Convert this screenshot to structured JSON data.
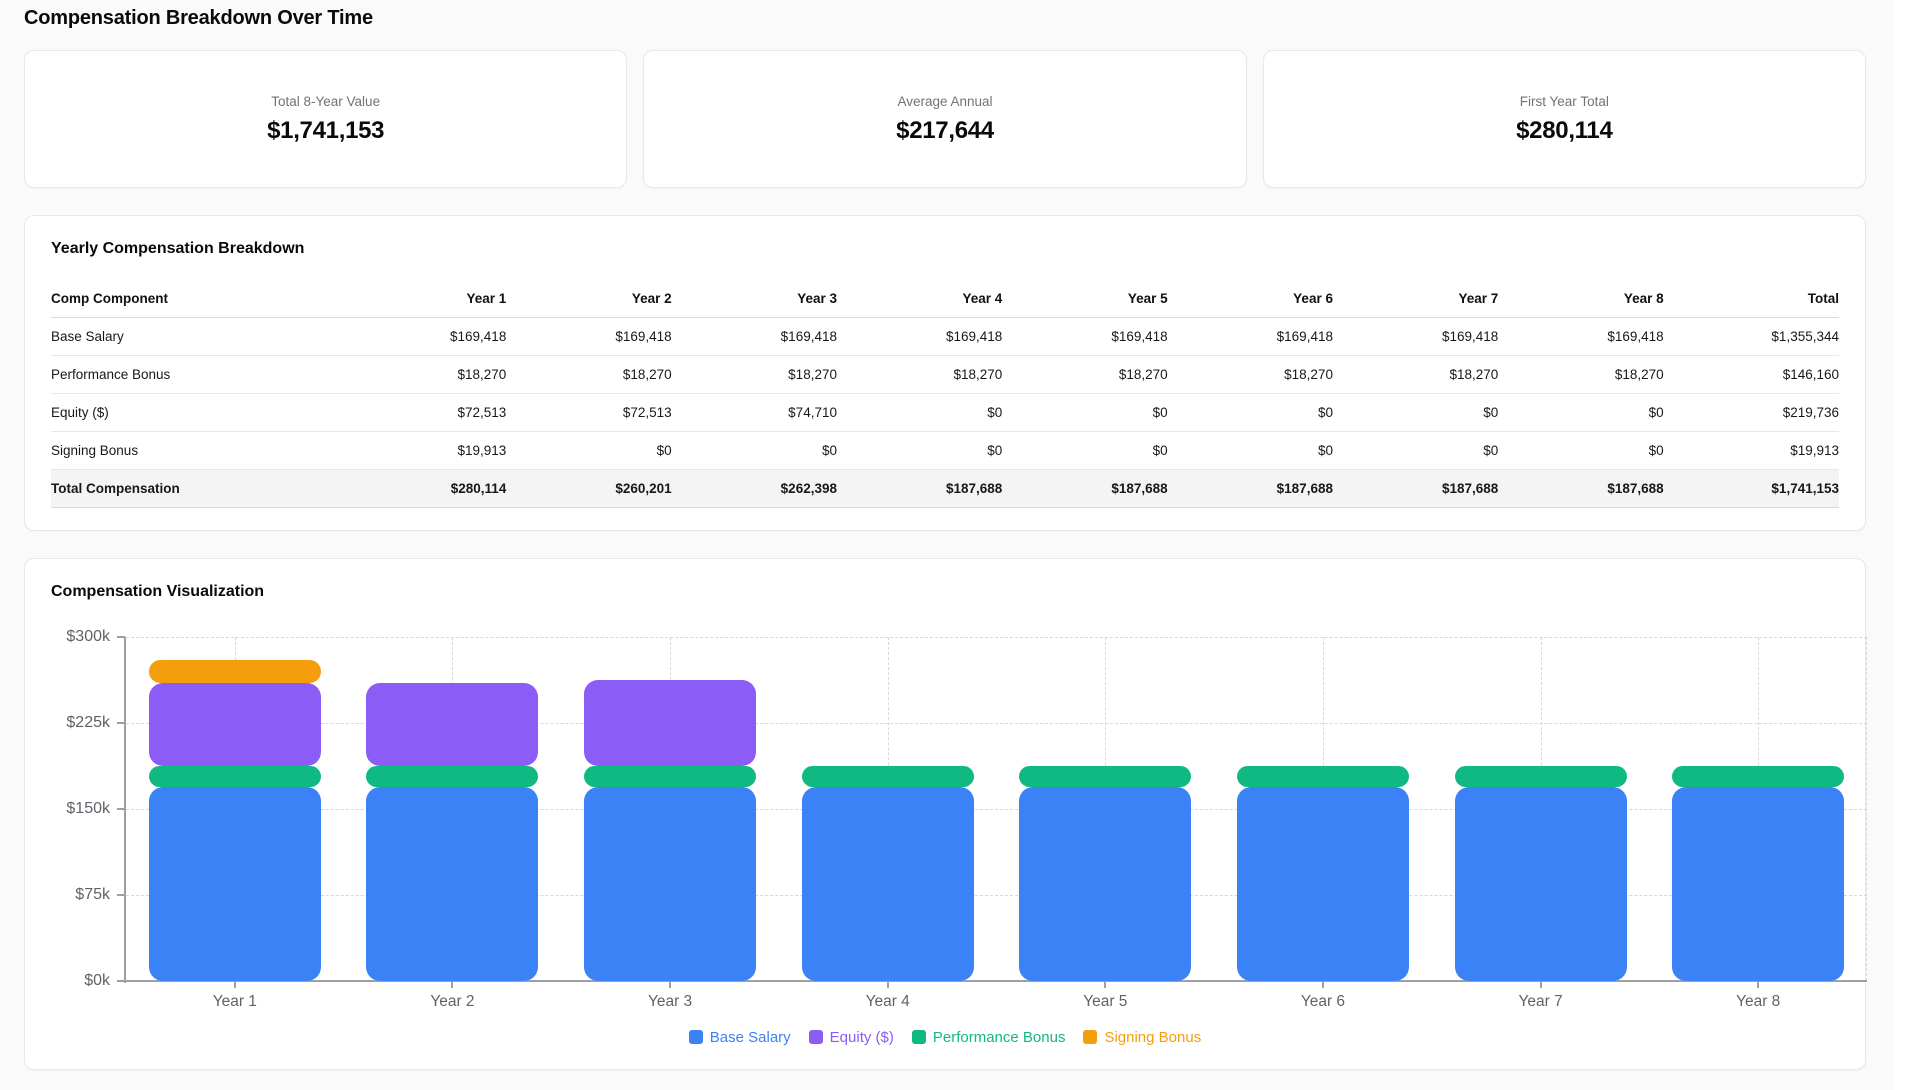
{
  "page": {
    "title": "Compensation Breakdown Over Time"
  },
  "summary_cards": [
    {
      "label": "Total 8-Year Value",
      "value": "$1,741,153"
    },
    {
      "label": "Average Annual",
      "value": "$217,644"
    },
    {
      "label": "First Year Total",
      "value": "$280,114"
    }
  ],
  "table": {
    "title": "Yearly Compensation Breakdown",
    "columns": [
      "Comp Component",
      "Year 1",
      "Year 2",
      "Year 3",
      "Year 4",
      "Year 5",
      "Year 6",
      "Year 7",
      "Year 8",
      "Total"
    ],
    "rows": [
      {
        "label": "Base Salary",
        "values": [
          "$169,418",
          "$169,418",
          "$169,418",
          "$169,418",
          "$169,418",
          "$169,418",
          "$169,418",
          "$169,418",
          "$1,355,344"
        ]
      },
      {
        "label": "Performance Bonus",
        "values": [
          "$18,270",
          "$18,270",
          "$18,270",
          "$18,270",
          "$18,270",
          "$18,270",
          "$18,270",
          "$18,270",
          "$146,160"
        ]
      },
      {
        "label": "Equity ($)",
        "values": [
          "$72,513",
          "$72,513",
          "$74,710",
          "$0",
          "$0",
          "$0",
          "$0",
          "$0",
          "$219,736"
        ]
      },
      {
        "label": "Signing Bonus",
        "values": [
          "$19,913",
          "$0",
          "$0",
          "$0",
          "$0",
          "$0",
          "$0",
          "$0",
          "$19,913"
        ]
      }
    ],
    "total_row": {
      "label": "Total Compensation",
      "values": [
        "$280,114",
        "$260,201",
        "$262,398",
        "$187,688",
        "$187,688",
        "$187,688",
        "$187,688",
        "$187,688",
        "$1,741,153"
      ]
    }
  },
  "chart": {
    "title": "Compensation Visualization"
  },
  "chart_data": {
    "type": "bar",
    "stacked": true,
    "title": "Compensation Visualization",
    "categories": [
      "Year 1",
      "Year 2",
      "Year 3",
      "Year 4",
      "Year 5",
      "Year 6",
      "Year 7",
      "Year 8"
    ],
    "series": [
      {
        "name": "Base Salary",
        "color": "#3b82f6",
        "values": [
          169418,
          169418,
          169418,
          169418,
          169418,
          169418,
          169418,
          169418
        ]
      },
      {
        "name": "Performance Bonus",
        "color": "#10b981",
        "values": [
          18270,
          18270,
          18270,
          18270,
          18270,
          18270,
          18270,
          18270
        ]
      },
      {
        "name": "Equity ($)",
        "color": "#8b5cf6",
        "values": [
          72513,
          72513,
          74710,
          0,
          0,
          0,
          0,
          0
        ]
      },
      {
        "name": "Signing Bonus",
        "color": "#f59e0b",
        "values": [
          19913,
          0,
          0,
          0,
          0,
          0,
          0,
          0
        ]
      }
    ],
    "legend_order": [
      0,
      2,
      1,
      3
    ],
    "ylim": [
      0,
      300000
    ],
    "y_ticks": [
      0,
      75000,
      150000,
      225000,
      300000
    ],
    "y_tick_labels": [
      "$0k",
      "$75k",
      "$150k",
      "$225k",
      "$300k"
    ],
    "grid": "dashed",
    "legend_position": "bottom",
    "axis_color": "#9aa0a8",
    "grid_color": "#d7d7dc",
    "tick_label_color": "#5f6368"
  }
}
